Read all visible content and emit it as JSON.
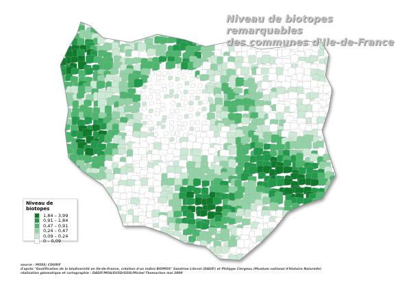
{
  "title_line1": "Niveau de biotopes remarquables",
  "title_line2": "des communes d'Ile-de-France",
  "legend": {
    "title": "Niveau de biotopes",
    "classes": [
      {
        "label": "1,84 – 3,99",
        "color": "#0f7a2c"
      },
      {
        "label": "0,91 – 1,84",
        "color": "#21994a"
      },
      {
        "label": "0,47 – 0,91",
        "color": "#4cb56e"
      },
      {
        "label": "0,24 – 0,47",
        "color": "#92d2a6"
      },
      {
        "label": "0,09 – 0,24",
        "color": "#cbe9d4"
      },
      {
        "label": "0      – 0,09",
        "color": "#ffffff"
      }
    ]
  },
  "source": {
    "line1": "source : MOSS; CDGRIF",
    "line2": "d'après \"Qualification de la biodiversité en Ile-de-France, création d'un indice BIOMOS\" Sandrine Lièvrol (DAEIF) et Philippe Clergeau (Muséum national d'Histoire Naturelle)",
    "line3": "réalisation géomatique et cartographie : DAEIF/MOA/EUSD/GSIG/Michel Thomachon mai 2009"
  }
}
